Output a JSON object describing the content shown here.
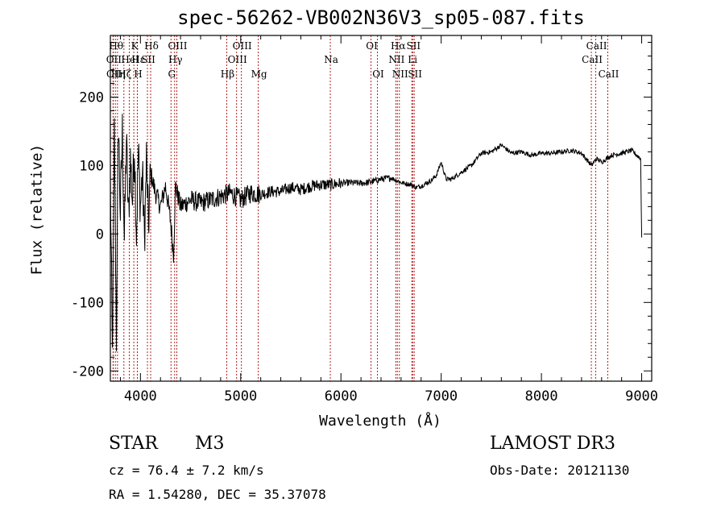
{
  "chart_data": {
    "type": "line",
    "title": "spec-56262-VB002N36V3_sp05-087.fits",
    "xlabel": "Wavelength (Å)",
    "ylabel": "Flux (relative)",
    "xlim": [
      3700,
      9100
    ],
    "ylim": [
      -215,
      290
    ],
    "x_ticks": [
      4000,
      5000,
      6000,
      7000,
      8000,
      9000
    ],
    "y_ticks": [
      -200,
      -100,
      0,
      100,
      200
    ],
    "series": [
      {
        "name": "flux",
        "x": [
          3700,
          3720,
          3740,
          3760,
          3780,
          3800,
          3820,
          3840,
          3860,
          3880,
          3900,
          3920,
          3940,
          3960,
          3980,
          4000,
          4020,
          4040,
          4060,
          4080,
          4100,
          4150,
          4200,
          4250,
          4300,
          4330,
          4350,
          4400,
          4500,
          4600,
          4700,
          4800,
          4900,
          5000,
          5100,
          5200,
          5300,
          5400,
          5500,
          5600,
          5700,
          5800,
          5900,
          6000,
          6100,
          6200,
          6300,
          6400,
          6500,
          6560,
          6600,
          6700,
          6750,
          6800,
          6900,
          6950,
          7000,
          7050,
          7100,
          7200,
          7300,
          7400,
          7500,
          7600,
          7700,
          7800,
          7900,
          8000,
          8100,
          8200,
          8300,
          8400,
          8500,
          8550,
          8600,
          8700,
          8800,
          8900,
          8990,
          9000
        ],
        "y": [
          80,
          -180,
          150,
          -150,
          170,
          30,
          150,
          -10,
          140,
          20,
          110,
          50,
          130,
          0,
          120,
          40,
          90,
          -10,
          110,
          10,
          90,
          60,
          40,
          70,
          20,
          -30,
          70,
          40,
          50,
          45,
          50,
          55,
          60,
          50,
          60,
          58,
          62,
          62,
          68,
          65,
          70,
          72,
          72,
          74,
          75,
          74,
          76,
          80,
          82,
          78,
          75,
          72,
          68,
          70,
          78,
          85,
          105,
          80,
          80,
          90,
          100,
          118,
          120,
          130,
          118,
          120,
          115,
          118,
          118,
          120,
          122,
          118,
          100,
          110,
          105,
          115,
          118,
          122,
          110,
          -5
        ]
      }
    ],
    "lines": [
      {
        "name": "OII",
        "x": 3727,
        "row": 2
      },
      {
        "name": "OII",
        "x": 3729,
        "row": 3
      },
      {
        "name": "Hθ",
        "x": 3750,
        "row": 1
      },
      {
        "name": "Hη",
        "x": 3771,
        "row": 3
      },
      {
        "name": "Hζ",
        "x": 3835,
        "row": 3
      },
      {
        "name": "HeI",
        "x": 3889,
        "row": 2
      },
      {
        "name": "K",
        "x": 3934,
        "row": 1
      },
      {
        "name": "H",
        "x": 3969,
        "row": 3
      },
      {
        "name": "Hε",
        "x": 3970,
        "row": 2
      },
      {
        "name": "SII",
        "x": 4070,
        "row": 2
      },
      {
        "name": "Hδ",
        "x": 4102,
        "row": 1
      },
      {
        "name": "G",
        "x": 4305,
        "row": 3
      },
      {
        "name": "Hγ",
        "x": 4341,
        "row": 2
      },
      {
        "name": "OIII",
        "x": 4363,
        "row": 1
      },
      {
        "name": "Hβ",
        "x": 4861,
        "row": 3
      },
      {
        "name": "OIII",
        "x": 4959,
        "row": 2
      },
      {
        "name": "OIII",
        "x": 5007,
        "row": 1
      },
      {
        "name": "Mg",
        "x": 5175,
        "row": 3
      },
      {
        "name": "Na",
        "x": 5894,
        "row": 2
      },
      {
        "name": "OI",
        "x": 6300,
        "row": 1
      },
      {
        "name": "OI",
        "x": 6364,
        "row": 3
      },
      {
        "name": "NII",
        "x": 6548,
        "row": 2
      },
      {
        "name": "Hα",
        "x": 6563,
        "row": 1
      },
      {
        "name": "NII",
        "x": 6583,
        "row": 3
      },
      {
        "name": "Li",
        "x": 6707,
        "row": 2
      },
      {
        "name": "SII",
        "x": 6716,
        "row": 1
      },
      {
        "name": "SII",
        "x": 6731,
        "row": 3
      },
      {
        "name": "CaII",
        "x": 8498,
        "row": 2
      },
      {
        "name": "CaII",
        "x": 8542,
        "row": 1
      },
      {
        "name": "CaII",
        "x": 8662,
        "row": 3
      }
    ]
  },
  "info": {
    "object_class": "STAR",
    "subclass": "M3",
    "survey": "LAMOST DR3",
    "cz": "cz = 76.4 ± 7.2 km/s",
    "obs_date": "Obs-Date: 20121130",
    "coords": "RA =   1.54280, DEC =  35.37078"
  },
  "colors": {
    "line": "#000000",
    "marker": "#b22222"
  }
}
